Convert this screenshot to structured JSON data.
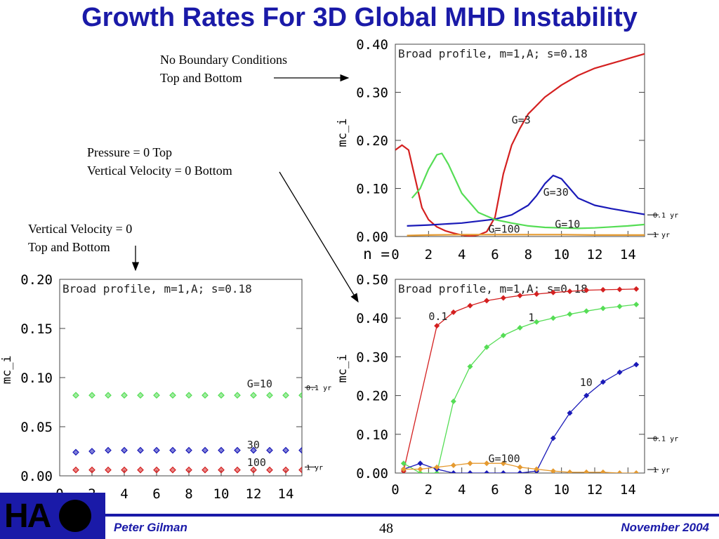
{
  "title": "Growth Rates For 3D Global MHD Instability",
  "notes": {
    "no_bc": "No Boundary Conditions\nTop and Bottom",
    "pressure": "Pressure = 0 Top\nVertical Velocity = 0 Bottom",
    "vvel": "Vertical Velocity = 0\nTop and Bottom"
  },
  "footer": {
    "author": "Peter Gilman",
    "page": "48",
    "date": "November 2004"
  },
  "logo": {
    "text": "HA"
  },
  "chart_data": [
    {
      "id": "top",
      "type": "line",
      "title": "Broad profile, m=1,A; s=0.18",
      "ylabel": "mc_i",
      "x_prefix": "n = ",
      "xlim": [
        0,
        15
      ],
      "ylim": [
        0,
        0.4
      ],
      "xticks": [
        0,
        2,
        4,
        6,
        8,
        10,
        12,
        14
      ],
      "xtick_labels": [
        "0",
        "2",
        "4",
        "6",
        "8",
        "10",
        "12",
        "14"
      ],
      "yticks": [
        0,
        0.1,
        0.2,
        0.3,
        0.4
      ],
      "ytick_labels": [
        "0.00",
        "0.10",
        "0.20",
        "0.30",
        "0.40"
      ],
      "ref_lines": [
        {
          "y": 0.045,
          "label": "0.1 yr"
        },
        {
          "y": 0.0045,
          "label": "1 yr"
        }
      ],
      "series": [
        {
          "name": "G=3",
          "color": "#d42020",
          "markers": false,
          "x": [
            0,
            0.4,
            0.8,
            1.2,
            1.6,
            2.0,
            2.5,
            3.0,
            3.5,
            4.0,
            4.5,
            5.0,
            5.5,
            6.0,
            6.5,
            7.0,
            7.5,
            8,
            9,
            10,
            11,
            12,
            13,
            14,
            15
          ],
          "y": [
            0.18,
            0.19,
            0.18,
            0.12,
            0.06,
            0.035,
            0.02,
            0.012,
            0.007,
            0.003,
            0.001,
            0.003,
            0.01,
            0.04,
            0.13,
            0.19,
            0.225,
            0.255,
            0.29,
            0.315,
            0.335,
            0.35,
            0.36,
            0.37,
            0.38
          ]
        },
        {
          "name": "G=30",
          "color": "#1a1ab8",
          "markers": false,
          "x": [
            0.7,
            2,
            4,
            6,
            7,
            8,
            8.5,
            9,
            9.5,
            10,
            10.5,
            11,
            12,
            13,
            14,
            15
          ],
          "y": [
            0.022,
            0.024,
            0.028,
            0.036,
            0.045,
            0.065,
            0.085,
            0.11,
            0.127,
            0.12,
            0.1,
            0.08,
            0.065,
            0.058,
            0.052,
            0.046
          ]
        },
        {
          "name": "G=10",
          "color": "#55dd55",
          "markers": false,
          "x": [
            1,
            1.5,
            2,
            2.5,
            2.8,
            3.2,
            4,
            5,
            6,
            7,
            8,
            9,
            10,
            11,
            12,
            13,
            14,
            15
          ],
          "y": [
            0.08,
            0.1,
            0.14,
            0.17,
            0.173,
            0.15,
            0.09,
            0.05,
            0.035,
            0.028,
            0.022,
            0.019,
            0.018,
            0.017,
            0.018,
            0.02,
            0.022,
            0.025
          ]
        },
        {
          "name": "G=100",
          "color": "#e59a30",
          "markers": false,
          "x": [
            0.7,
            2,
            4,
            6,
            8,
            10,
            12,
            14,
            15
          ],
          "y": [
            0.002,
            0.003,
            0.004,
            0.004,
            0.004,
            0.004,
            0.003,
            0.003,
            0.003
          ]
        }
      ],
      "labels": [
        {
          "text": "G=3",
          "x": 7.0,
          "y": 0.235
        },
        {
          "text": "G=30",
          "x": 8.9,
          "y": 0.085
        },
        {
          "text": "G=10",
          "x": 9.6,
          "y": 0.018
        },
        {
          "text": "G=100",
          "x": 5.6,
          "y0": 0.0,
          "y": 0.008
        }
      ]
    },
    {
      "id": "left",
      "type": "scatter",
      "title": "Broad profile, m=1,A; s=0.18",
      "ylabel": "mc_i",
      "xlim": [
        0,
        15
      ],
      "ylim": [
        0,
        0.2
      ],
      "xticks": [
        0,
        2,
        4,
        6,
        8,
        10,
        12,
        14
      ],
      "xtick_labels": [
        "0",
        "2",
        "4",
        "6",
        "8",
        "10",
        "12",
        "14"
      ],
      "yticks": [
        0,
        0.05,
        0.1,
        0.15,
        0.2
      ],
      "ytick_labels": [
        "0.00",
        "0.05",
        "0.10",
        "0.15",
        "0.20"
      ],
      "ref_lines": [
        {
          "y": 0.09,
          "label": "0.1 yr"
        },
        {
          "y": 0.009,
          "label": "1 yr"
        }
      ],
      "series": [
        {
          "name": "G=10",
          "color": "#55dd55",
          "markers": true,
          "line": false,
          "x": [
            1,
            2,
            3,
            4,
            5,
            6,
            7,
            8,
            9,
            10,
            11,
            12,
            13,
            14,
            15
          ],
          "y": [
            0.082,
            0.082,
            0.082,
            0.082,
            0.082,
            0.082,
            0.082,
            0.082,
            0.082,
            0.082,
            0.082,
            0.082,
            0.082,
            0.082,
            0.082
          ]
        },
        {
          "name": "30",
          "color": "#1a1ab8",
          "markers": true,
          "line": false,
          "x": [
            1,
            2,
            3,
            4,
            5,
            6,
            7,
            8,
            9,
            10,
            11,
            12,
            13,
            14,
            15
          ],
          "y": [
            0.024,
            0.025,
            0.026,
            0.026,
            0.026,
            0.026,
            0.026,
            0.026,
            0.026,
            0.026,
            0.026,
            0.026,
            0.026,
            0.026,
            0.026
          ]
        },
        {
          "name": "100",
          "color": "#d42020",
          "markers": true,
          "line": false,
          "x": [
            1,
            2,
            3,
            4,
            5,
            6,
            7,
            8,
            9,
            10,
            11,
            12,
            13,
            14,
            15
          ],
          "y": [
            0.006,
            0.006,
            0.006,
            0.006,
            0.006,
            0.006,
            0.006,
            0.006,
            0.006,
            0.006,
            0.006,
            0.006,
            0.006,
            0.006,
            0.006
          ]
        }
      ],
      "labels": [
        {
          "text": "G=10",
          "x": 11.6,
          "y": 0.09
        },
        {
          "text": "30",
          "x": 11.6,
          "y": 0.028
        },
        {
          "text": "100",
          "x": 11.6,
          "y": 0.01
        }
      ]
    },
    {
      "id": "bottom",
      "type": "line",
      "title": "Broad profile, m=1,A; s=0.18",
      "ylabel": "mc_i",
      "xlim": [
        0,
        15
      ],
      "ylim": [
        0,
        0.5
      ],
      "xticks": [
        0,
        2,
        4,
        6,
        8,
        10,
        12,
        14
      ],
      "xtick_labels": [
        "0",
        "2",
        "4",
        "6",
        "8",
        "10",
        "12",
        "14"
      ],
      "yticks": [
        0,
        0.1,
        0.2,
        0.3,
        0.4,
        0.5
      ],
      "ytick_labels": [
        "0.00",
        "0.10",
        "0.20",
        "0.30",
        "0.40",
        "0.50"
      ],
      "ref_lines": [
        {
          "y": 0.09,
          "label": "0.1 yr"
        },
        {
          "y": 0.009,
          "label": "1 yr"
        }
      ],
      "series": [
        {
          "name": "0.1",
          "color": "#d42020",
          "markers": true,
          "line": true,
          "x": [
            0.5,
            2.5,
            3.5,
            4.5,
            5.5,
            6.5,
            7.5,
            8.5,
            9.5,
            10.5,
            11.5,
            12.5,
            13.5,
            14.5
          ],
          "y": [
            0.005,
            0.38,
            0.415,
            0.432,
            0.445,
            0.452,
            0.458,
            0.462,
            0.466,
            0.469,
            0.472,
            0.473,
            0.474,
            0.475
          ]
        },
        {
          "name": "1",
          "color": "#55dd55",
          "markers": true,
          "line": true,
          "x": [
            0.5,
            1.5,
            2.5,
            3.5,
            4.5,
            5.5,
            6.5,
            7.5,
            8.5,
            9.5,
            10.5,
            11.5,
            12.5,
            13.5,
            14.5
          ],
          "y": [
            0.025,
            0.0,
            0.0,
            0.185,
            0.275,
            0.325,
            0.355,
            0.375,
            0.39,
            0.4,
            0.41,
            0.418,
            0.425,
            0.43,
            0.435
          ]
        },
        {
          "name": "10",
          "color": "#1a1ab8",
          "markers": true,
          "line": true,
          "x": [
            0.5,
            1.5,
            2.5,
            3.5,
            4.5,
            5.5,
            6.5,
            7.5,
            8.5,
            9.5,
            10.5,
            11.5,
            12.5,
            13.5,
            14.5
          ],
          "y": [
            0.01,
            0.025,
            0.01,
            0.0,
            0.0,
            0.0,
            0.0,
            0.0,
            0.005,
            0.09,
            0.155,
            0.2,
            0.235,
            0.26,
            0.28
          ]
        },
        {
          "name": "G=100",
          "color": "#e59a30",
          "markers": true,
          "line": true,
          "x": [
            0.5,
            1.5,
            2.5,
            3.5,
            4.5,
            5.5,
            6.5,
            7.5,
            8.5,
            9.5,
            10.5,
            11.5,
            12.5,
            13.5,
            14.5
          ],
          "y": [
            0.01,
            0.01,
            0.015,
            0.02,
            0.025,
            0.025,
            0.025,
            0.015,
            0.01,
            0.005,
            0.002,
            0.002,
            0.002,
            0.0,
            0.0
          ]
        }
      ],
      "labels": [
        {
          "text": "0.1",
          "x": 2.0,
          "y": 0.395
        },
        {
          "text": "1",
          "x": 8.0,
          "y": 0.392
        },
        {
          "text": "10",
          "x": 11.1,
          "y": 0.225
        },
        {
          "text": "G=100",
          "x": 5.6,
          "y": 0.028
        }
      ]
    }
  ]
}
